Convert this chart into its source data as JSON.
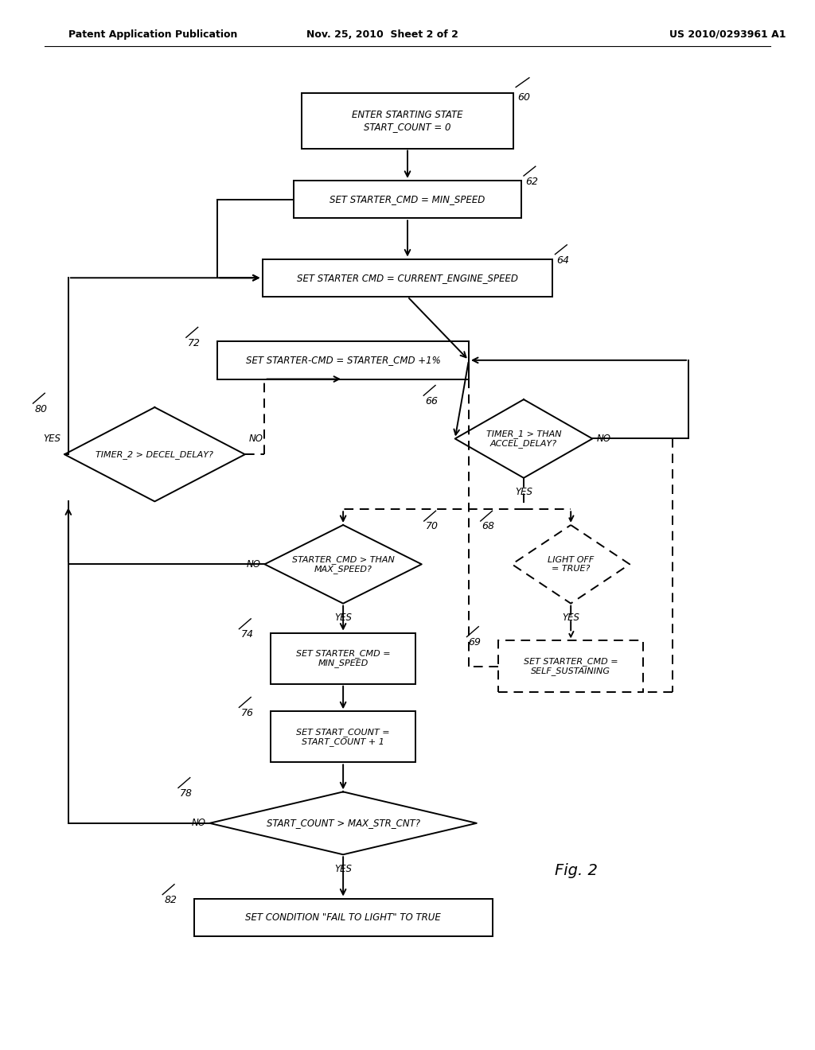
{
  "header_left": "Patent Application Publication",
  "header_mid": "Nov. 25, 2010  Sheet 2 of 2",
  "header_right": "US 2010/0293961 A1",
  "fig_label": "Fig. 2",
  "bg_color": "#ffffff"
}
